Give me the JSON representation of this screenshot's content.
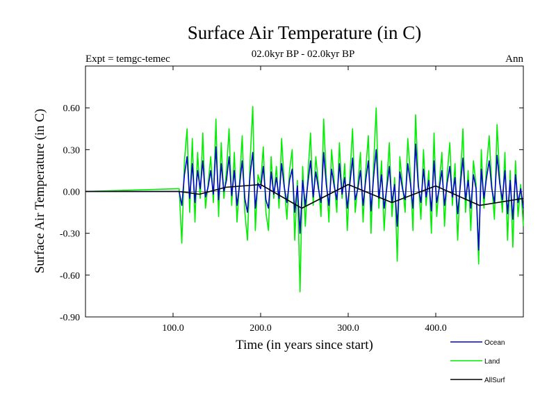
{
  "chart_data": {
    "type": "line",
    "title": "Surface Air Temperature (in C)",
    "subtitle": "02.0kyr BP - 02.0kyr BP",
    "left_label": "Expt = temgc-temec",
    "right_label": "Ann",
    "xlabel": "Time (in years since start)",
    "ylabel": "Surface Air Temperature (in C)",
    "xlim": [
      0,
      500
    ],
    "ylim": [
      -0.9,
      0.9
    ],
    "x_ticks": [
      100,
      200,
      300,
      400
    ],
    "x_tick_labels": [
      "100.0",
      "200.0",
      "300.0",
      "400.0"
    ],
    "y_ticks": [
      -0.9,
      -0.6,
      -0.3,
      0.0,
      0.3,
      0.6
    ],
    "y_tick_labels": [
      "-0.90",
      "-0.60",
      "-0.30",
      "0.00",
      "0.30",
      "0.60"
    ],
    "zero_line": 0.0,
    "legend": [
      {
        "name": "Ocean",
        "color": "#0000cc"
      },
      {
        "name": "Land",
        "color": "#00ee00"
      },
      {
        "name": "AllSurf",
        "color": "#000000"
      }
    ],
    "series": [
      {
        "name": "Land",
        "color": "#00ee00",
        "x": [
          0,
          107,
          110,
          113,
          116,
          119,
          122,
          125,
          128,
          131,
          134,
          137,
          140,
          143,
          146,
          149,
          152,
          155,
          158,
          161,
          164,
          167,
          170,
          173,
          176,
          179,
          182,
          185,
          188,
          191,
          194,
          197,
          200,
          203,
          206,
          209,
          212,
          215,
          218,
          221,
          224,
          227,
          230,
          233,
          236,
          239,
          242,
          245,
          248,
          251,
          254,
          257,
          260,
          263,
          266,
          269,
          272,
          275,
          278,
          281,
          284,
          287,
          290,
          293,
          296,
          299,
          302,
          305,
          308,
          311,
          314,
          317,
          320,
          323,
          326,
          329,
          332,
          335,
          338,
          341,
          344,
          347,
          350,
          353,
          356,
          359,
          362,
          365,
          368,
          371,
          374,
          377,
          380,
          383,
          386,
          389,
          392,
          395,
          398,
          401,
          404,
          407,
          410,
          413,
          416,
          419,
          422,
          425,
          428,
          431,
          434,
          437,
          440,
          443,
          446,
          449,
          452,
          455,
          458,
          461,
          464,
          467,
          470,
          473,
          476,
          479,
          482,
          485,
          488,
          491,
          494,
          497,
          500
        ],
        "values": [
          0,
          0.02,
          -0.37,
          0.22,
          0.45,
          -0.15,
          0.38,
          -0.22,
          0.28,
          -0.05,
          0.42,
          -0.12,
          0.05,
          0.25,
          -0.08,
          0.52,
          -0.18,
          0.35,
          -0.05,
          0.15,
          0.45,
          -0.1,
          0.28,
          -0.22,
          0.08,
          0.4,
          -0.15,
          -0.35,
          0.22,
          0.61,
          -0.28,
          0.12,
          0.05,
          0.32,
          -0.15,
          -0.28,
          0.25,
          -0.05,
          0.18,
          -0.12,
          0.38,
          0.05,
          -0.2,
          0.15,
          0.3,
          -0.35,
          0.08,
          -0.72,
          0.18,
          -0.25,
          0.12,
          0.42,
          -0.1,
          0.25,
          0.05,
          -0.18,
          0.52,
          0.1,
          -0.22,
          0.3,
          0.08,
          -0.15,
          0.35,
          -0.05,
          0.2,
          -0.28,
          0.12,
          0.45,
          -0.15,
          0.05,
          0.28,
          -0.22,
          0.15,
          0.4,
          -0.3,
          0.18,
          0.6,
          -0.12,
          0.22,
          -0.28,
          0.05,
          0.35,
          -0.18,
          0.1,
          -0.5,
          0.25,
          0.05,
          -0.15,
          0.38,
          0.12,
          -0.28,
          0.55,
          0.08,
          -0.2,
          0.3,
          -0.1,
          0.15,
          -0.3,
          0.42,
          -0.18,
          0.05,
          0.28,
          -0.25,
          0.12,
          0.35,
          -0.1,
          0.2,
          -0.35,
          0.08,
          0.45,
          -0.15,
          0.15,
          -0.28,
          0.22,
          0.05,
          -0.52,
          0.3,
          -0.12,
          0.18,
          0.4,
          0.05,
          -0.2,
          0.48,
          0.1,
          -0.15,
          0.28,
          -0.35,
          0.15,
          -0.4,
          0.22,
          -0.18,
          0.05,
          -0.25
        ]
      },
      {
        "name": "Ocean",
        "color": "#0000cc",
        "x": [
          0,
          107,
          110,
          113,
          116,
          119,
          122,
          125,
          128,
          131,
          134,
          137,
          140,
          143,
          146,
          149,
          152,
          155,
          158,
          161,
          164,
          167,
          170,
          173,
          176,
          179,
          182,
          185,
          188,
          191,
          194,
          197,
          200,
          203,
          206,
          209,
          212,
          215,
          218,
          221,
          224,
          227,
          230,
          233,
          236,
          239,
          242,
          245,
          248,
          251,
          254,
          257,
          260,
          263,
          266,
          269,
          272,
          275,
          278,
          281,
          284,
          287,
          290,
          293,
          296,
          299,
          302,
          305,
          308,
          311,
          314,
          317,
          320,
          323,
          326,
          329,
          332,
          335,
          338,
          341,
          344,
          347,
          350,
          353,
          356,
          359,
          362,
          365,
          368,
          371,
          374,
          377,
          380,
          383,
          386,
          389,
          392,
          395,
          398,
          401,
          404,
          407,
          410,
          413,
          416,
          419,
          422,
          425,
          428,
          431,
          434,
          437,
          440,
          443,
          446,
          449,
          452,
          455,
          458,
          461,
          464,
          467,
          470,
          473,
          476,
          479,
          482,
          485,
          488,
          491,
          494,
          497,
          500
        ],
        "values": [
          0,
          0.0,
          -0.1,
          0.12,
          0.25,
          -0.05,
          0.2,
          -0.08,
          0.15,
          0.02,
          0.22,
          -0.04,
          0.03,
          0.15,
          -0.02,
          0.32,
          -0.06,
          0.2,
          0.0,
          0.08,
          0.25,
          -0.03,
          0.15,
          -0.1,
          0.05,
          0.22,
          -0.05,
          -0.15,
          0.12,
          0.28,
          -0.12,
          0.06,
          0.02,
          0.18,
          -0.06,
          -0.12,
          0.14,
          -0.02,
          0.1,
          -0.05,
          0.2,
          0.03,
          -0.08,
          0.08,
          0.16,
          -0.15,
          0.04,
          -0.3,
          0.08,
          -0.1,
          0.06,
          0.22,
          -0.04,
          0.14,
          0.02,
          -0.08,
          0.28,
          0.05,
          -0.1,
          0.16,
          0.04,
          -0.06,
          0.2,
          -0.02,
          0.1,
          -0.12,
          0.06,
          0.24,
          -0.06,
          0.02,
          0.15,
          -0.1,
          0.08,
          0.22,
          -0.14,
          0.1,
          0.3,
          -0.05,
          0.12,
          -0.12,
          0.02,
          0.18,
          -0.08,
          0.05,
          -0.25,
          0.14,
          0.02,
          -0.06,
          0.2,
          0.06,
          -0.12,
          0.34,
          0.04,
          -0.08,
          0.16,
          -0.04,
          0.08,
          -0.14,
          0.22,
          -0.08,
          0.02,
          0.15,
          -0.1,
          0.06,
          0.18,
          -0.04,
          0.1,
          -0.16,
          0.04,
          0.24,
          -0.06,
          0.08,
          -0.12,
          0.12,
          0.02,
          -0.42,
          0.16,
          -0.05,
          0.1,
          0.22,
          0.02,
          -0.08,
          0.26,
          0.06,
          -0.06,
          0.15,
          -0.16,
          0.08,
          -0.2,
          0.12,
          -0.08,
          0.02,
          -0.12
        ]
      },
      {
        "name": "AllSurf",
        "color": "#000000",
        "x": [
          0,
          107,
          130,
          160,
          200,
          247,
          300,
          350,
          400,
          450,
          500
        ],
        "values": [
          0,
          0,
          -0.02,
          0.03,
          0.05,
          -0.12,
          0.05,
          -0.08,
          0.04,
          -0.1,
          -0.05
        ]
      }
    ]
  }
}
